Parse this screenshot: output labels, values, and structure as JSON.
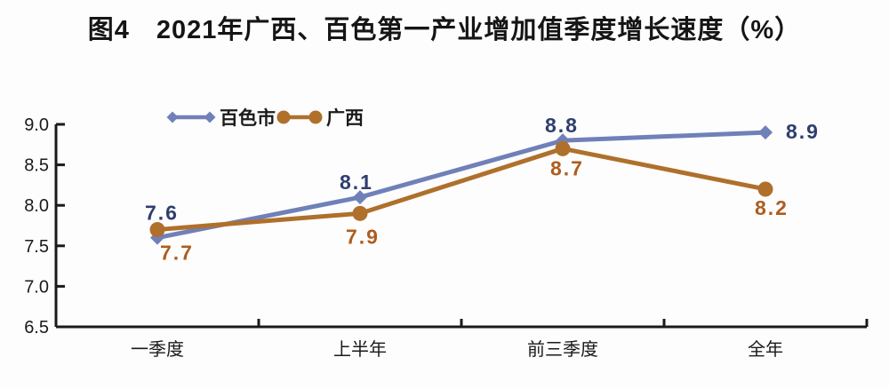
{
  "chart_data": {
    "type": "line",
    "title": "图4　2021年广西、百色第一产业增加值季度增长速度（%）",
    "categories": [
      "一季度",
      "上半年",
      "前三季度",
      "全年"
    ],
    "xlabel": "",
    "ylabel": "",
    "ylim": [
      6.5,
      9.0
    ],
    "ytick_step": 0.5,
    "ytick_labels": [
      "9.0",
      "8.5",
      "8.0",
      "7.5",
      "7.0",
      "6.5"
    ],
    "grid": false,
    "legend_position": "top-left-inside",
    "axis_color": "#1a1a1a",
    "series": [
      {
        "name": "百色市",
        "color": "#7080b8",
        "label_color": "#2f3e6f",
        "marker": "diamond",
        "values": [
          7.6,
          8.1,
          8.8,
          8.9
        ],
        "point_labels": [
          "7.6",
          "8.1",
          "8.8",
          "8.9"
        ],
        "label_offsets": [
          [
            5,
            -20
          ],
          [
            -4,
            -9
          ],
          [
            -1,
            -9
          ],
          [
            42,
            7
          ]
        ]
      },
      {
        "name": "广西",
        "color": "#af702c",
        "label_color": "#ad5d1f",
        "marker": "circle",
        "values": [
          7.7,
          7.9,
          8.7,
          8.2
        ],
        "point_labels": [
          "7.7",
          "7.9",
          "8.7",
          "8.2"
        ],
        "label_offsets": [
          [
            22,
            34
          ],
          [
            3,
            34
          ],
          [
            5,
            30
          ],
          [
            7,
            29
          ]
        ]
      }
    ]
  }
}
